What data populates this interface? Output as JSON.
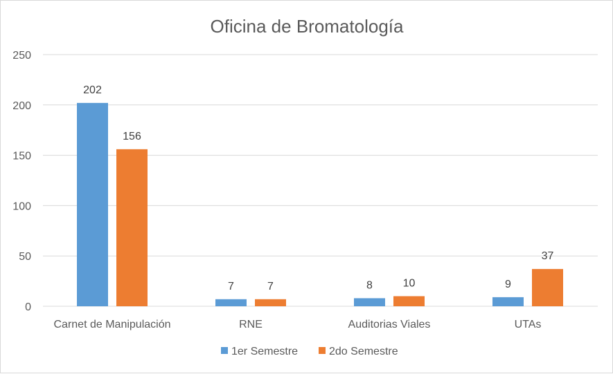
{
  "chart_data": {
    "type": "bar",
    "title": "Oficina de Bromatología",
    "categories": [
      "Carnet de Manipulación",
      "RNE",
      "Auditorias Viales",
      "UTAs"
    ],
    "series": [
      {
        "name": "1er Semestre",
        "values": [
          202,
          7,
          8,
          9
        ],
        "color": "#5b9bd5"
      },
      {
        "name": "2do Semestre",
        "values": [
          156,
          7,
          10,
          37
        ],
        "color": "#ed7d31"
      }
    ],
    "ylim": [
      0,
      250
    ],
    "yticks": [
      0,
      50,
      100,
      150,
      200,
      250
    ],
    "grid": true,
    "legend": "bottom",
    "xlabel": "",
    "ylabel": ""
  }
}
